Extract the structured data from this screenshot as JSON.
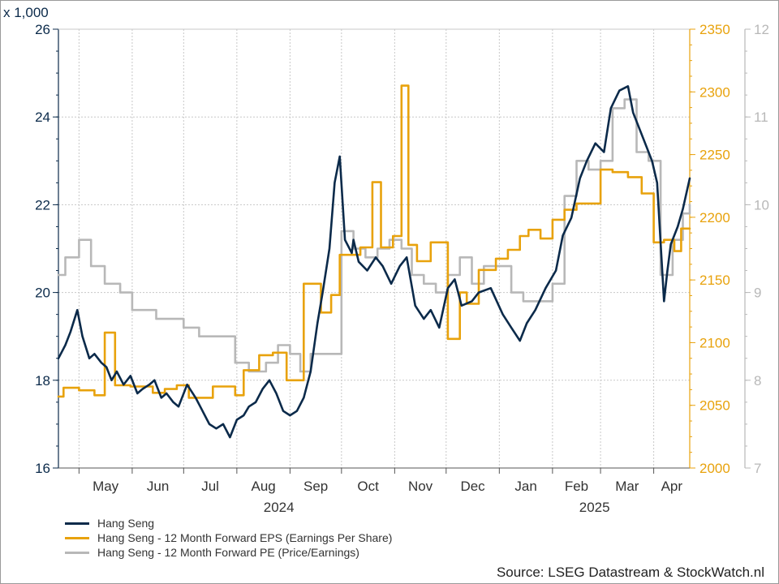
{
  "chart_data": {
    "type": "line",
    "multiplier_label": "x 1,000",
    "source": "Source: LSEG Datastream & StockWatch.nl",
    "x_range": [
      "2024-04-19",
      "2025-04-22"
    ],
    "months": [
      {
        "label": "May",
        "start": "2024-05-01",
        "end": "2024-06-01"
      },
      {
        "label": "Jun",
        "start": "2024-06-01",
        "end": "2024-07-01"
      },
      {
        "label": "Jul",
        "start": "2024-07-01",
        "end": "2024-08-01"
      },
      {
        "label": "Aug",
        "start": "2024-08-01",
        "end": "2024-09-01"
      },
      {
        "label": "Sep",
        "start": "2024-09-01",
        "end": "2024-10-01"
      },
      {
        "label": "Oct",
        "start": "2024-10-01",
        "end": "2024-11-01"
      },
      {
        "label": "Nov",
        "start": "2024-11-01",
        "end": "2024-12-01"
      },
      {
        "label": "Dec",
        "start": "2024-12-01",
        "end": "2025-01-01"
      },
      {
        "label": "Jan",
        "start": "2025-01-01",
        "end": "2025-02-01"
      },
      {
        "label": "Feb",
        "start": "2025-02-01",
        "end": "2025-03-01"
      },
      {
        "label": "Mar",
        "start": "2025-03-01",
        "end": "2025-04-01"
      },
      {
        "label": "Apr",
        "start": "2025-04-01",
        "end": "2025-04-22"
      }
    ],
    "years": [
      {
        "label": "2024",
        "start": "2024-04-19",
        "end": "2025-01-01"
      },
      {
        "label": "2025",
        "start": "2025-01-01",
        "end": "2025-04-22"
      }
    ],
    "axes": {
      "left": {
        "min": 16,
        "max": 26,
        "ticks": [
          16,
          18,
          20,
          22,
          24,
          26
        ],
        "color": "#0b2a4a"
      },
      "right1": {
        "min": 2000,
        "max": 2350,
        "ticks": [
          2000,
          2050,
          2100,
          2150,
          2200,
          2250,
          2300,
          2350
        ],
        "color": "#e8a20c"
      },
      "right2": {
        "min": 7,
        "max": 12,
        "ticks": [
          7,
          8,
          9,
          10,
          11,
          12
        ],
        "color": "#b8b8b8"
      }
    },
    "grid": true,
    "legend_position": "bottom-left",
    "series": [
      {
        "name": "Hang Seng",
        "axis": "left",
        "color": "#0b2a4a",
        "x": [
          "2024-04-19",
          "2024-04-23",
          "2024-04-26",
          "2024-04-30",
          "2024-05-03",
          "2024-05-07",
          "2024-05-10",
          "2024-05-14",
          "2024-05-17",
          "2024-05-20",
          "2024-05-23",
          "2024-05-27",
          "2024-05-31",
          "2024-06-04",
          "2024-06-07",
          "2024-06-11",
          "2024-06-14",
          "2024-06-18",
          "2024-06-21",
          "2024-06-25",
          "2024-06-28",
          "2024-07-03",
          "2024-07-08",
          "2024-07-12",
          "2024-07-16",
          "2024-07-20",
          "2024-07-24",
          "2024-07-28",
          "2024-08-01",
          "2024-08-05",
          "2024-08-08",
          "2024-08-12",
          "2024-08-16",
          "2024-08-20",
          "2024-08-24",
          "2024-08-28",
          "2024-09-01",
          "2024-09-05",
          "2024-09-09",
          "2024-09-13",
          "2024-09-17",
          "2024-09-20",
          "2024-09-24",
          "2024-09-27",
          "2024-09-30",
          "2024-10-03",
          "2024-10-07",
          "2024-10-08",
          "2024-10-11",
          "2024-10-16",
          "2024-10-21",
          "2024-10-25",
          "2024-10-30",
          "2024-11-04",
          "2024-11-08",
          "2024-11-13",
          "2024-11-18",
          "2024-11-22",
          "2024-11-27",
          "2024-12-02",
          "2024-12-06",
          "2024-12-10",
          "2024-12-16",
          "2024-12-20",
          "2024-12-27",
          "2025-01-03",
          "2025-01-08",
          "2025-01-13",
          "2025-01-17",
          "2025-01-22",
          "2025-01-28",
          "2025-02-03",
          "2025-02-07",
          "2025-02-12",
          "2025-02-17",
          "2025-02-21",
          "2025-02-26",
          "2025-03-03",
          "2025-03-07",
          "2025-03-12",
          "2025-03-17",
          "2025-03-20",
          "2025-03-25",
          "2025-03-31",
          "2025-04-03",
          "2025-04-07",
          "2025-04-09",
          "2025-04-11",
          "2025-04-15",
          "2025-04-18",
          "2025-04-22"
        ],
        "values": [
          18.5,
          18.8,
          19.1,
          19.6,
          19.0,
          18.5,
          18.6,
          18.4,
          18.3,
          18.0,
          18.2,
          17.9,
          18.1,
          17.7,
          17.8,
          17.9,
          18.0,
          17.6,
          17.7,
          17.5,
          17.4,
          17.9,
          17.6,
          17.3,
          17.0,
          16.9,
          17.0,
          16.7,
          17.1,
          17.2,
          17.4,
          17.5,
          17.8,
          18.0,
          17.7,
          17.3,
          17.2,
          17.3,
          17.6,
          18.2,
          19.3,
          20.0,
          21.0,
          22.5,
          23.1,
          21.2,
          20.9,
          21.2,
          20.7,
          20.5,
          20.8,
          20.6,
          20.2,
          20.6,
          20.8,
          19.7,
          19.4,
          19.6,
          19.2,
          20.1,
          20.3,
          19.7,
          19.8,
          20.0,
          20.1,
          19.5,
          19.2,
          18.9,
          19.3,
          19.6,
          20.1,
          20.5,
          21.3,
          21.7,
          22.6,
          23.0,
          23.4,
          23.2,
          24.2,
          24.6,
          24.7,
          24.1,
          23.6,
          23.0,
          22.5,
          19.8,
          20.5,
          21.1,
          21.5,
          21.9,
          22.6
        ]
      },
      {
        "name": "Hang Seng - 12 Month Forward EPS (Earnings Per Share)",
        "axis": "right1",
        "color": "#e8a20c",
        "step": true,
        "x": [
          "2024-04-19",
          "2024-04-22",
          "2024-05-01",
          "2024-05-10",
          "2024-05-16",
          "2024-05-22",
          "2024-05-31",
          "2024-06-13",
          "2024-06-20",
          "2024-06-27",
          "2024-07-04",
          "2024-07-18",
          "2024-07-31",
          "2024-08-05",
          "2024-08-14",
          "2024-08-22",
          "2024-08-30",
          "2024-09-03",
          "2024-09-09",
          "2024-09-19",
          "2024-09-25",
          "2024-09-30",
          "2024-10-12",
          "2024-10-19",
          "2024-10-24",
          "2024-10-31",
          "2024-11-05",
          "2024-11-09",
          "2024-11-14",
          "2024-11-22",
          "2024-12-02",
          "2024-12-09",
          "2024-12-13",
          "2024-12-20",
          "2024-12-30",
          "2025-01-06",
          "2025-01-13",
          "2025-01-18",
          "2025-01-25",
          "2025-02-01",
          "2025-02-08",
          "2025-02-15",
          "2025-03-01",
          "2025-03-08",
          "2025-03-17",
          "2025-03-25",
          "2025-04-01",
          "2025-04-07",
          "2025-04-13",
          "2025-04-17",
          "2025-04-22"
        ],
        "values": [
          2057,
          2064,
          2062,
          2058,
          2108,
          2066,
          2065,
          2060,
          2063,
          2066,
          2056,
          2065,
          2058,
          2078,
          2090,
          2092,
          2070,
          2070,
          2147,
          2124,
          2138,
          2170,
          2176,
          2228,
          2176,
          2185,
          2305,
          2178,
          2165,
          2180,
          2103,
          2140,
          2131,
          2158,
          2167,
          2174,
          2185,
          2190,
          2183,
          2198,
          2206,
          2211,
          2238,
          2236,
          2232,
          2219,
          2180,
          2182,
          2173,
          2191,
          2191
        ]
      },
      {
        "name": "Hang Seng - 12 Month Forward PE (Price/Earnings)",
        "axis": "right2",
        "color": "#b8b8b8",
        "step": true,
        "x": [
          "2024-04-19",
          "2024-04-23",
          "2024-05-01",
          "2024-05-08",
          "2024-05-16",
          "2024-05-25",
          "2024-06-01",
          "2024-06-08",
          "2024-06-15",
          "2024-06-22",
          "2024-07-01",
          "2024-07-10",
          "2024-07-20",
          "2024-07-31",
          "2024-08-08",
          "2024-08-18",
          "2024-08-25",
          "2024-09-01",
          "2024-09-07",
          "2024-09-13",
          "2024-09-22",
          "2024-10-01",
          "2024-10-08",
          "2024-10-15",
          "2024-10-22",
          "2024-10-29",
          "2024-11-05",
          "2024-11-11",
          "2024-11-18",
          "2024-11-25",
          "2024-12-02",
          "2024-12-09",
          "2024-12-16",
          "2024-12-23",
          "2024-12-30",
          "2025-01-08",
          "2025-01-15",
          "2025-01-22",
          "2025-02-01",
          "2025-02-08",
          "2025-02-15",
          "2025-02-22",
          "2025-03-01",
          "2025-03-08",
          "2025-03-15",
          "2025-03-22",
          "2025-03-29",
          "2025-04-05",
          "2025-04-12",
          "2025-04-18",
          "2025-04-22"
        ],
        "values": [
          9.2,
          9.4,
          9.6,
          9.3,
          9.1,
          9.0,
          8.8,
          8.8,
          8.7,
          8.7,
          8.6,
          8.5,
          8.5,
          8.2,
          8.1,
          8.2,
          8.4,
          8.3,
          8.1,
          8.3,
          8.3,
          9.7,
          9.5,
          9.4,
          9.5,
          9.6,
          9.5,
          9.2,
          9.1,
          9.0,
          9.2,
          9.4,
          9.1,
          9.3,
          9.3,
          9.0,
          8.9,
          8.9,
          9.1,
          10.1,
          10.5,
          10.4,
          10.5,
          11.1,
          11.2,
          10.6,
          10.5,
          9.2,
          9.6,
          9.9,
          10.0
        ]
      }
    ]
  }
}
